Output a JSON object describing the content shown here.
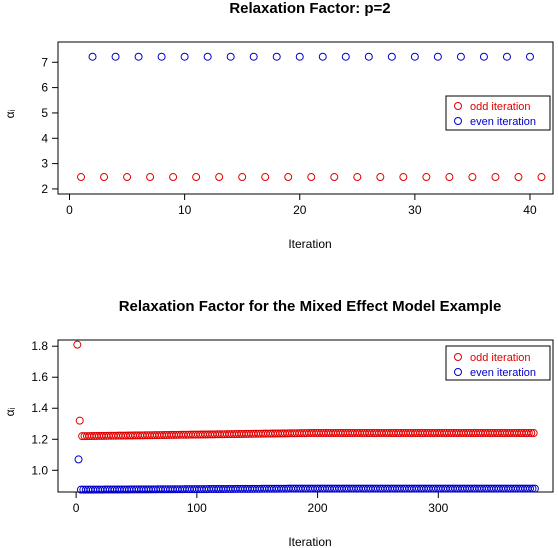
{
  "chart_data": [
    {
      "type": "scatter",
      "title": "Relaxation Factor: p=2",
      "xlabel": "Iteration",
      "ylabel": "αᵢ",
      "xlim": [
        -1,
        42
      ],
      "ylim": [
        1.8,
        7.8
      ],
      "xticks": [
        "0",
        "10",
        "20",
        "30",
        "40"
      ],
      "yticks": [
        "2",
        "3",
        "4",
        "5",
        "6",
        "7"
      ],
      "legend_position": "right",
      "colors": {
        "odd": "#e00000",
        "even": "#0000cc"
      },
      "series": [
        {
          "name": "odd iteration",
          "x": [
            1,
            3,
            5,
            7,
            9,
            11,
            13,
            15,
            17,
            19,
            21,
            23,
            25,
            27,
            29,
            31,
            33,
            35,
            37,
            39,
            41
          ],
          "y": [
            2.47,
            2.47,
            2.47,
            2.47,
            2.47,
            2.47,
            2.47,
            2.47,
            2.47,
            2.47,
            2.47,
            2.47,
            2.47,
            2.47,
            2.47,
            2.47,
            2.47,
            2.47,
            2.47,
            2.47,
            2.47
          ]
        },
        {
          "name": "even iteration",
          "x": [
            2,
            4,
            6,
            8,
            10,
            12,
            14,
            16,
            18,
            20,
            22,
            24,
            26,
            28,
            30,
            32,
            34,
            36,
            38,
            40
          ],
          "y": [
            7.22,
            7.22,
            7.22,
            7.22,
            7.22,
            7.22,
            7.22,
            7.22,
            7.22,
            7.22,
            7.22,
            7.22,
            7.22,
            7.22,
            7.22,
            7.22,
            7.22,
            7.22,
            7.22,
            7.22
          ]
        }
      ]
    },
    {
      "type": "scatter",
      "title": "Relaxation Factor for the Mixed Effect Model Example",
      "xlabel": "Iteration",
      "ylabel": "αᵢ",
      "xlim": [
        -15,
        395
      ],
      "ylim": [
        0.86,
        1.84
      ],
      "xticks": [
        "0",
        "100",
        "200",
        "300"
      ],
      "yticks": [
        "1.0",
        "1.2",
        "1.4",
        "1.6",
        "1.8"
      ],
      "legend_position": "top-right",
      "colors": {
        "odd": "#e00000",
        "even": "#0000cc"
      },
      "series": [
        {
          "name": "odd iteration",
          "description": "iteration 1 at 1.81, iteration 3 at 1.32, then odd iterations 5–379 rising from 1.22 to about 1.24",
          "x_start": 1,
          "x_step": 2,
          "x_end": 379,
          "y_head": [
            1.81,
            1.32
          ],
          "y_steady_start": 1.22,
          "y_steady_end": 1.24
        },
        {
          "name": "even iteration",
          "description": "iteration 2 at 1.07, then even iterations 4–380 near 0.88",
          "x_start": 2,
          "x_step": 2,
          "x_end": 380,
          "y_head": [
            1.07
          ],
          "y_steady_start": 0.875,
          "y_steady_end": 0.882
        }
      ]
    }
  ]
}
